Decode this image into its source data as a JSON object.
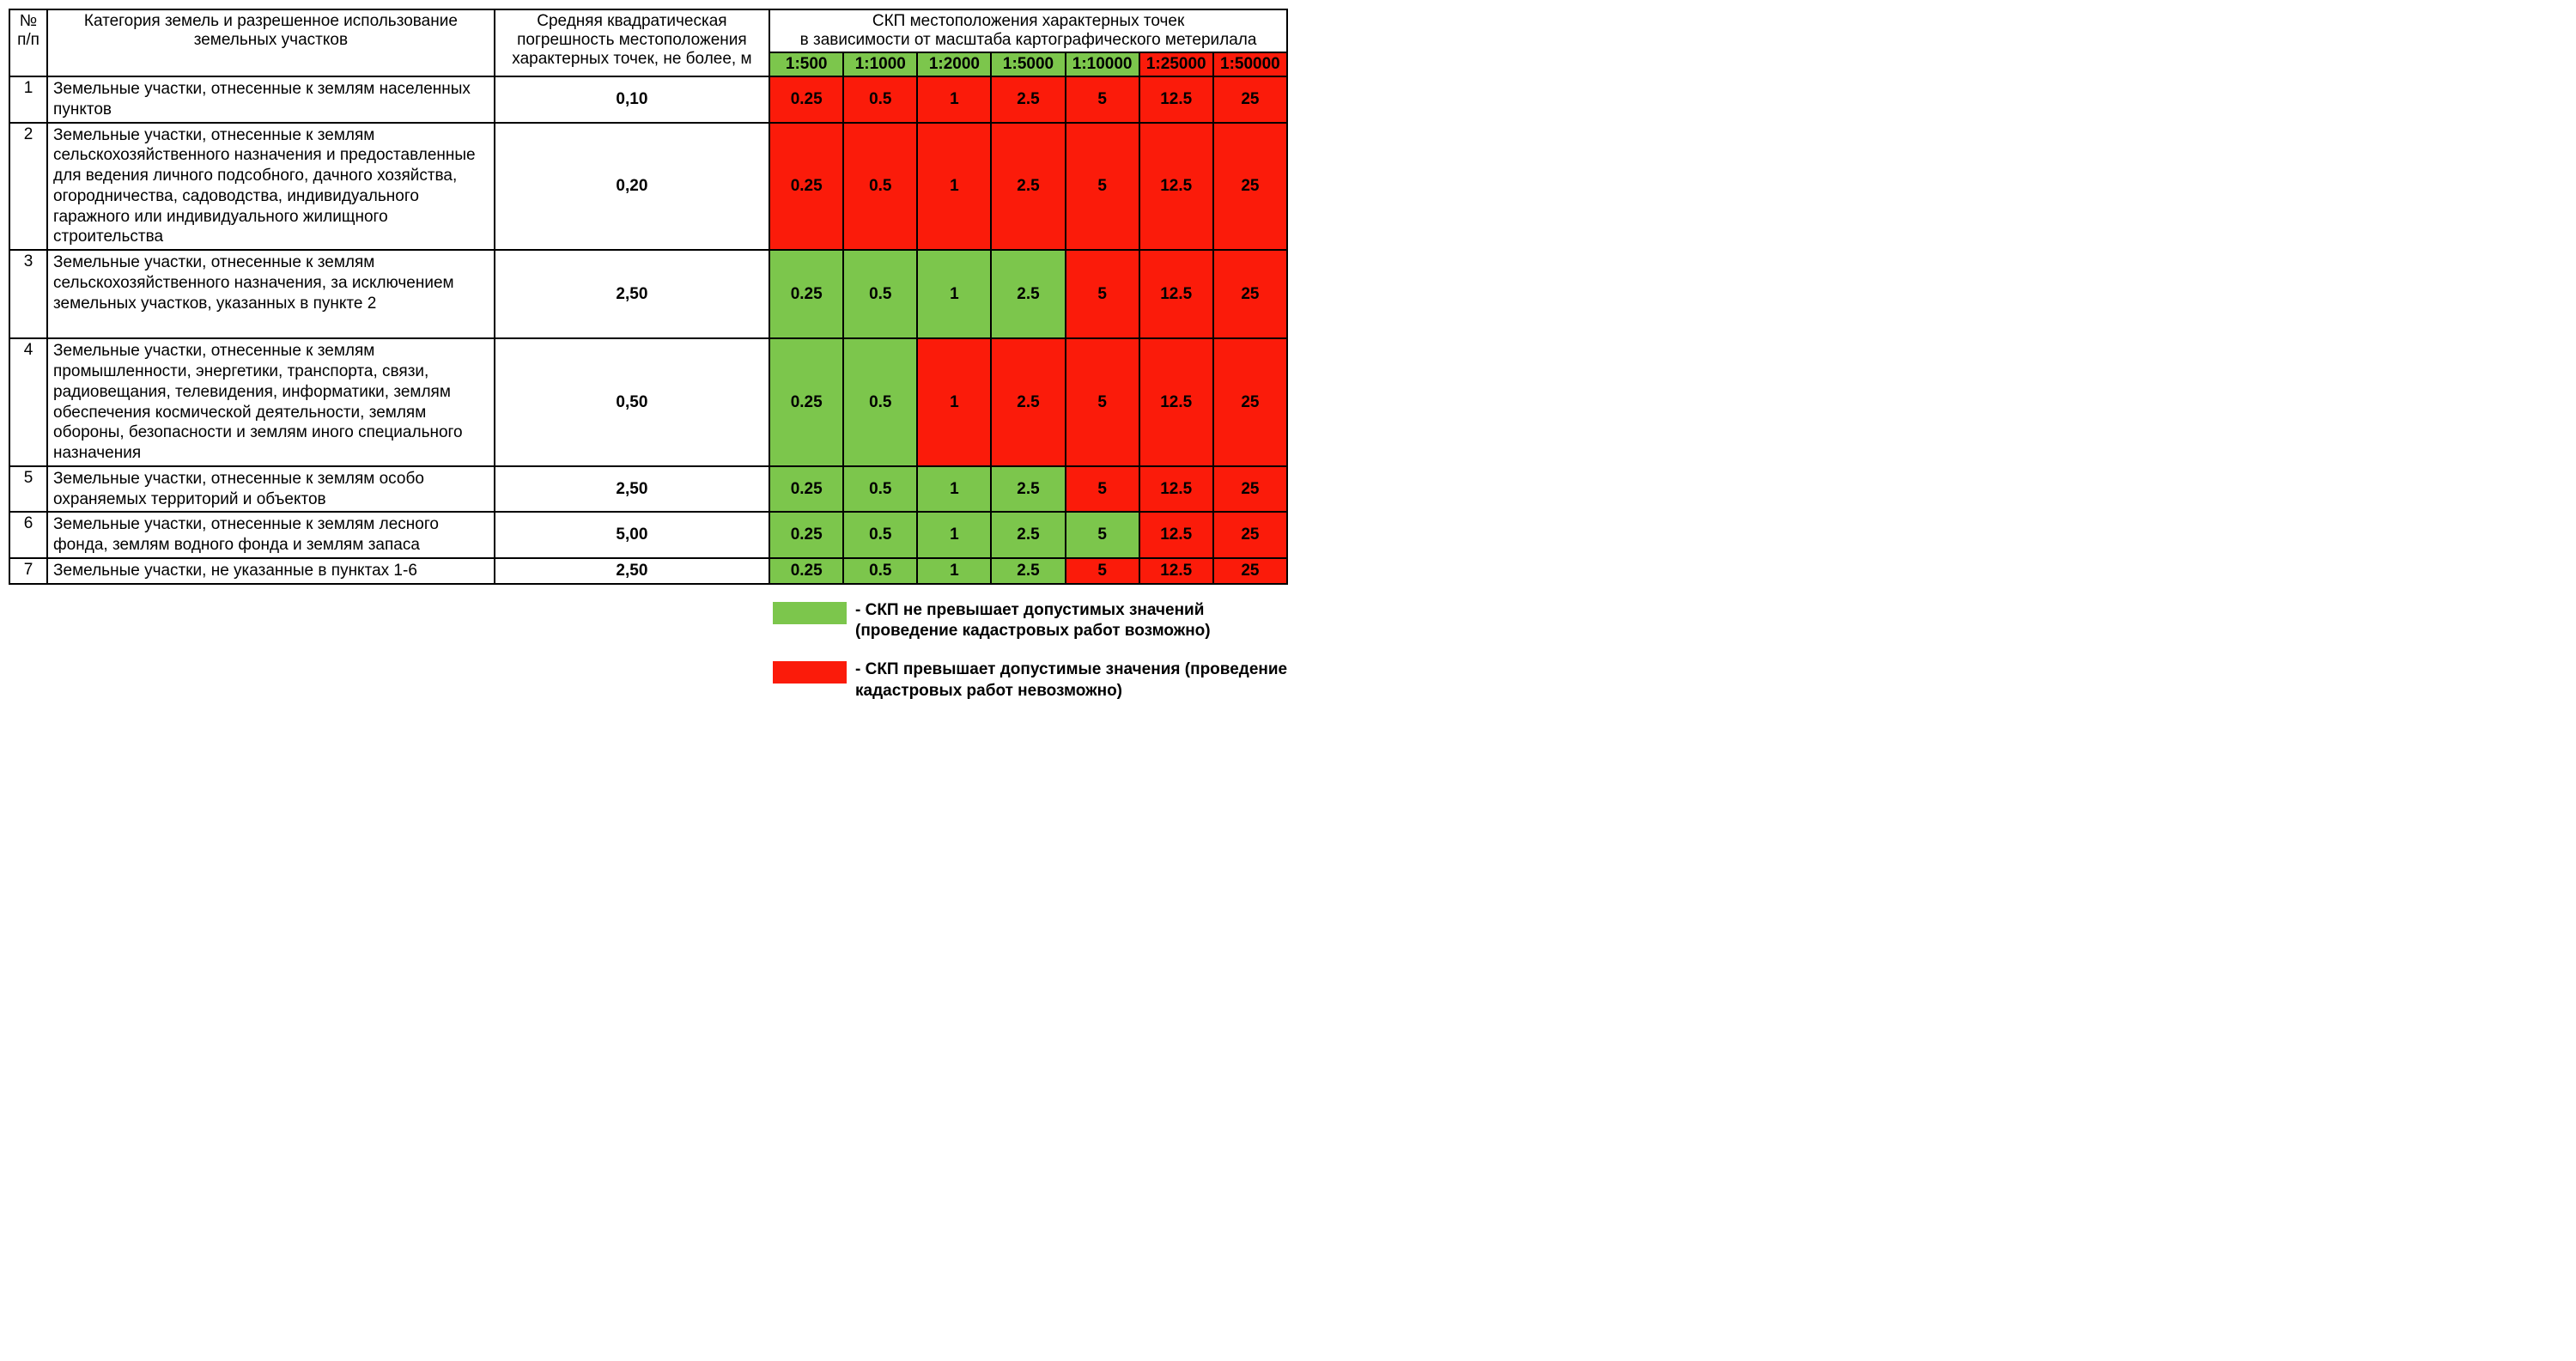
{
  "colors": {
    "green": "#7cc64c",
    "red": "#fb1b0a",
    "white": "#ffffff",
    "black": "#000000"
  },
  "headers": {
    "num": "№ п/п",
    "category": "Категория земель и разрешенное использование земельных участков",
    "error": "Средняя квадратическая погрешность местоположения характерных точек, не более, м",
    "skp_top": "СКП местоположения характерных точек",
    "skp_bottom": "в зависимости от масштаба картографического метерилала"
  },
  "scales": {
    "labels": [
      "1:500",
      "1:1000",
      "1:2000",
      "1:5000",
      "1:10000",
      "1:25000",
      "1:50000"
    ],
    "header_colors": [
      "green",
      "green",
      "green",
      "green",
      "green",
      "red",
      "red"
    ]
  },
  "values_row": [
    "0.25",
    "0.5",
    "1",
    "2.5",
    "5",
    "12.5",
    "25"
  ],
  "rows": [
    {
      "num": "1",
      "cat": "Земельные участки, отнесенные к землям населенных пунктов",
      "err": "0,10",
      "colors": [
        "red",
        "red",
        "red",
        "red",
        "red",
        "red",
        "red"
      ]
    },
    {
      "num": "2",
      "cat": "Земельные участки, отнесенные к землям сельскохозяйственного назначения и предоставленные для ведения личного подсобного, дачного хозяйства, огородничества, садоводства, индивидуального гаражного или индивидуального жилищного строительства",
      "err": "0,20",
      "colors": [
        "red",
        "red",
        "red",
        "red",
        "red",
        "red",
        "red"
      ]
    },
    {
      "num": "3",
      "cat": "Земельные участки, отнесенные к землям сельскохозяйственного назначения, за исключением земельных участков, указанных в пункте 2",
      "err": "2,50",
      "colors": [
        "green",
        "green",
        "green",
        "green",
        "red",
        "red",
        "red"
      ],
      "pad_bottom": true
    },
    {
      "num": "4",
      "cat": "Земельные участки, отнесенные к землям промышленности, энергетики, транспорта, связи, радиовещания, телевидения, информатики, землям обеспечения космической деятельности, землям обороны, безопасности и землям иного специального назначения",
      "err": "0,50",
      "colors": [
        "green",
        "green",
        "red",
        "red",
        "red",
        "red",
        "red"
      ]
    },
    {
      "num": "5",
      "cat": "Земельные участки, отнесенные к землям особо охраняемых территорий и объектов",
      "err": "2,50",
      "colors": [
        "green",
        "green",
        "green",
        "green",
        "red",
        "red",
        "red"
      ]
    },
    {
      "num": "6",
      "cat": "Земельные участки, отнесенные к землям лесного фонда, землям водного фонда и землям запаса",
      "err": "5,00",
      "colors": [
        "green",
        "green",
        "green",
        "green",
        "green",
        "red",
        "red"
      ]
    },
    {
      "num": "7",
      "cat": "Земельные участки, не указанные в пунктах 1-6",
      "err": "2,50",
      "colors": [
        "green",
        "green",
        "green",
        "green",
        "red",
        "red",
        "red"
      ]
    }
  ],
  "legend": {
    "green": "- СКП не превышает допустимых значений (проведение кадастровых работ возможно)",
    "red": "- СКП превышает допустимые значения (проведение кадастровых работ невозможно)"
  }
}
